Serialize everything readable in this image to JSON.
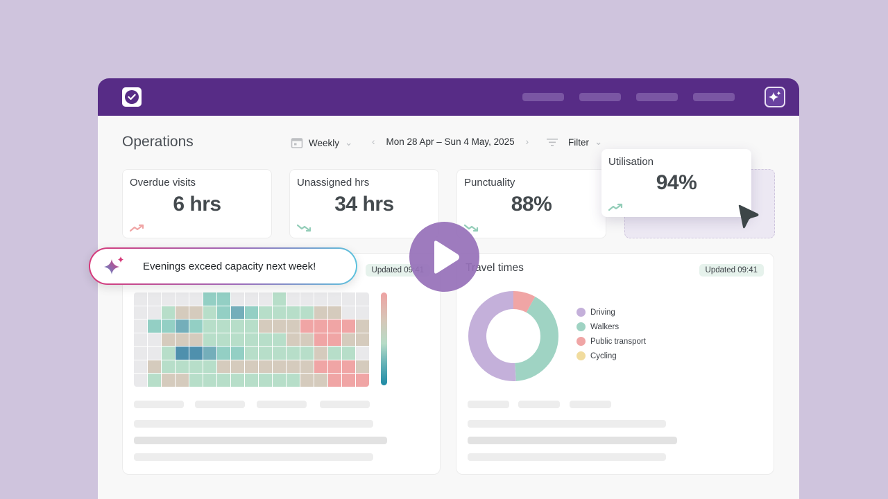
{
  "header": {
    "logo": "checkmark-logo",
    "nav_items": [
      "",
      "",
      "",
      ""
    ],
    "ai_button_icon": "sparkle-icon"
  },
  "toolbar": {
    "page_title": "Operations",
    "period_icon": "calendar-icon",
    "period_label": "Weekly",
    "date_range": "Mon 28 Apr – Sun 4 May, 2025",
    "filter_icon": "filter-icon",
    "filter_label": "Filter"
  },
  "kpis": [
    {
      "title": "Overdue visits",
      "value": "6 hrs",
      "trend": "up",
      "trend_color": "#f0a5a5"
    },
    {
      "title": "Unassigned hrs",
      "value": "34 hrs",
      "trend": "down",
      "trend_color": "#93cdb8"
    },
    {
      "title": "Punctuality",
      "value": "88%",
      "trend": "down",
      "trend_color": "#93cdb8"
    },
    {
      "title": "Utilisation",
      "value": "94%",
      "trend": "up",
      "trend_color": "#93cdb8"
    }
  ],
  "toast": {
    "icon": "sparkle-icon",
    "text": "Evenings exceed capacity next week!"
  },
  "heatmap_card": {
    "badge": "Updated 09:41",
    "palette": {
      "e": "#e9e9eb",
      "g": "#b7dec9",
      "t": "#93cfc4",
      "d": "#74aeba",
      "D": "#4f90ad",
      "b": "#d5cbbd",
      "r": "#f0a5a5"
    },
    "rows": [
      "eeeeetteeegeeeeee",
      "eegbbgtdtggggbbee",
      "ettdtggggbbbrrrrb",
      "eebbbggggggbbrrbb",
      "eegDDdttgggggbgge",
      "ebggggbbbbbbbrrrb",
      "egbbggggggggbbrrr"
    ]
  },
  "travel_card": {
    "title": "Travel times",
    "badge": "Updated 09:41",
    "legend": [
      {
        "label": "Driving",
        "color": "#c4b0da"
      },
      {
        "label": "Walkers",
        "color": "#9fd3c3"
      },
      {
        "label": "Public transport",
        "color": "#f0a5a5"
      },
      {
        "label": "Cycling",
        "color": "#f1dc9e"
      }
    ]
  },
  "chart_data": [
    {
      "type": "pie",
      "title": "Travel times",
      "categories": [
        "Driving",
        "Walkers",
        "Public transport",
        "Cycling"
      ],
      "values": [
        51,
        41,
        8,
        0
      ],
      "legend_position": "right"
    },
    {
      "type": "heatmap",
      "title": "",
      "rows": 7,
      "columns": 17,
      "levels_low_to_high": [
        "D",
        "d",
        "t",
        "g",
        "b",
        "r"
      ],
      "legend_position": "right colorbar"
    }
  ],
  "overlay": {
    "play_icon": "play-icon",
    "cursor_icon": "cursor-arrow-icon"
  }
}
